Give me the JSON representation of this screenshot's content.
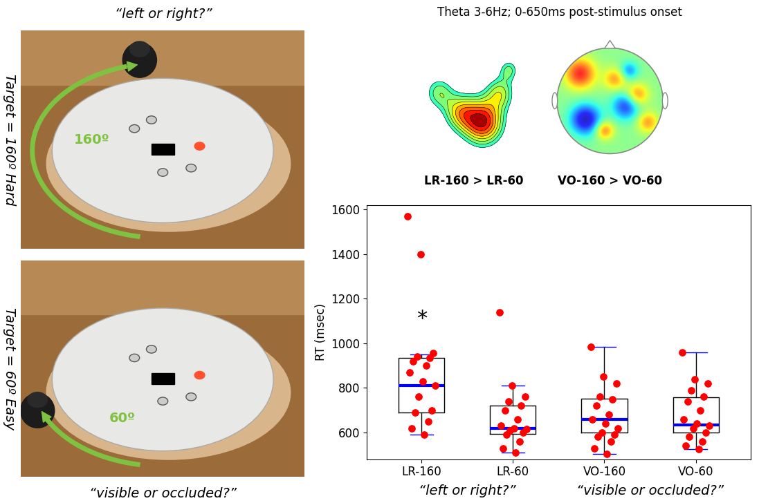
{
  "photos": [
    {
      "question": "“left or right?”",
      "side_label": "Target = 160º Hard",
      "angle": 160,
      "angle_label": "160º"
    },
    {
      "question": "“visible or occluded?”",
      "side_label": "Target = 60º Easy",
      "angle": 60,
      "angle_label": "60º"
    }
  ],
  "topomaps": {
    "title": "Theta 3-6Hz; 0-650ms post-stimulus onset",
    "labels": [
      "LR-160 > LR-60",
      "VO-160 > VO-60"
    ]
  },
  "chart_data": {
    "type": "box",
    "categories": [
      "LR-160",
      "LR-60",
      "VO-160",
      "VO-60"
    ],
    "y_label": "RT (msec)",
    "ylim": [
      480,
      1620
    ],
    "yticks": [
      600,
      800,
      1000,
      1200,
      1400,
      1600
    ],
    "boxes": [
      {
        "q1": 690,
        "median": 812,
        "q3": 935,
        "whislo": 590,
        "whishi": 950
      },
      {
        "q1": 595,
        "median": 620,
        "q3": 720,
        "whislo": 510,
        "whishi": 812
      },
      {
        "q1": 600,
        "median": 660,
        "q3": 752,
        "whislo": 505,
        "whishi": 985
      },
      {
        "q1": 600,
        "median": 635,
        "q3": 758,
        "whislo": 525,
        "whishi": 960
      }
    ],
    "series": [
      {
        "name": "RT",
        "color": "#ff0000",
        "marker": "o",
        "values": [
          [
            1570,
            1400,
            955,
            940,
            935,
            920,
            900,
            870,
            830,
            810,
            760,
            700,
            690,
            650,
            620,
            590
          ],
          [
            1140,
            810,
            760,
            740,
            720,
            700,
            660,
            630,
            620,
            615,
            610,
            600,
            590,
            560,
            530,
            510
          ],
          [
            985,
            850,
            820,
            760,
            750,
            720,
            680,
            660,
            640,
            620,
            600,
            590,
            580,
            560,
            530,
            505
          ],
          [
            960,
            840,
            820,
            790,
            760,
            740,
            700,
            660,
            640,
            630,
            620,
            600,
            580,
            560,
            540,
            525
          ]
        ]
      }
    ],
    "median_color": "#0000ff",
    "annotations": [
      {
        "text": "*",
        "category": "LR-160",
        "y": 1110
      }
    ],
    "group_labels": [
      {
        "text": "“left or right?”",
        "categories": [
          "LR-160",
          "LR-60"
        ]
      },
      {
        "text": "“visible or occluded?”",
        "categories": [
          "VO-160",
          "VO-60"
        ]
      }
    ]
  }
}
